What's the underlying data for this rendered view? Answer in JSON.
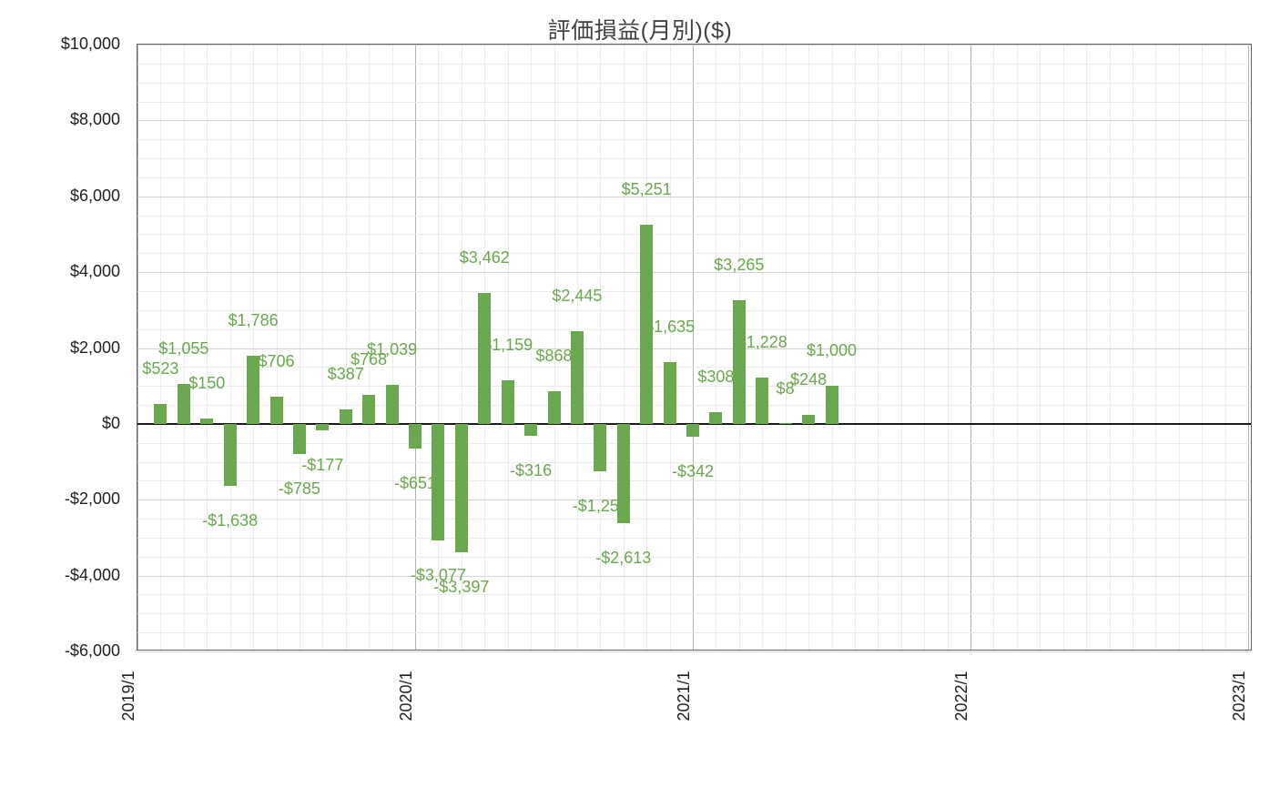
{
  "chart_data": {
    "type": "bar",
    "title": "評価損益(月別)($)",
    "xlabel": "",
    "ylabel": "",
    "legend": "none",
    "grid": true,
    "background": "#ffffff",
    "bar_color": "#6aa84f",
    "label_color": "#6aa84f",
    "axis_text_color": "#1f1f1f",
    "ylim": [
      -6000,
      10000
    ],
    "y_major_step": 2000,
    "y_minor_step": 500,
    "x_months_total": 48,
    "categories": [
      "2019/1",
      "2019/2",
      "2019/3",
      "2019/4",
      "2019/5",
      "2019/6",
      "2019/7",
      "2019/8",
      "2019/9",
      "2019/10",
      "2019/11",
      "2019/12",
      "2020/1",
      "2020/2",
      "2020/3",
      "2020/4",
      "2020/5",
      "2020/6",
      "2020/7",
      "2020/8",
      "2020/9",
      "2020/10",
      "2020/11",
      "2020/12",
      "2021/1",
      "2021/2",
      "2021/3",
      "2021/4",
      "2021/5",
      "2021/6"
    ],
    "values": [
      523,
      1055,
      150,
      -1638,
      1786,
      706,
      -785,
      -177,
      387,
      768,
      1039,
      -651,
      -3077,
      -3397,
      3462,
      1159,
      -316,
      868,
      2445,
      -1258,
      -2613,
      5251,
      1635,
      -342,
      308,
      3265,
      1228,
      8,
      248,
      1000
    ],
    "value_labels": [
      "$523",
      "$1,055",
      "$150",
      "-$1,638",
      "$1,786",
      "$706",
      "-$785",
      "-$177",
      "$387",
      "$768",
      "$1,039",
      "-$651",
      "-$3,077",
      "-$3,397",
      "$3,462",
      "$1,159",
      "-$316",
      "$868",
      "$2,445",
      "-$1,258",
      "-$2,613",
      "$5,251",
      "$1,635",
      "-$342",
      "$308",
      "$3,265",
      "$1,228",
      "$8",
      "$248",
      "$1,000"
    ],
    "y_ticks": [
      {
        "value": 10000,
        "label": "$10,000"
      },
      {
        "value": 8000,
        "label": "$8,000"
      },
      {
        "value": 6000,
        "label": "$6,000"
      },
      {
        "value": 4000,
        "label": "$4,000"
      },
      {
        "value": 2000,
        "label": "$2,000"
      },
      {
        "value": 0,
        "label": "$0"
      },
      {
        "value": -2000,
        "label": "-$2,000"
      },
      {
        "value": -4000,
        "label": "-$4,000"
      },
      {
        "value": -6000,
        "label": "-$6,000"
      }
    ],
    "x_ticks": [
      {
        "month_index": 0,
        "label": "2019/1"
      },
      {
        "month_index": 12,
        "label": "2020/1"
      },
      {
        "month_index": 24,
        "label": "2021/1"
      },
      {
        "month_index": 36,
        "label": "2022/1"
      },
      {
        "month_index": 48,
        "label": "2023/1"
      }
    ]
  }
}
